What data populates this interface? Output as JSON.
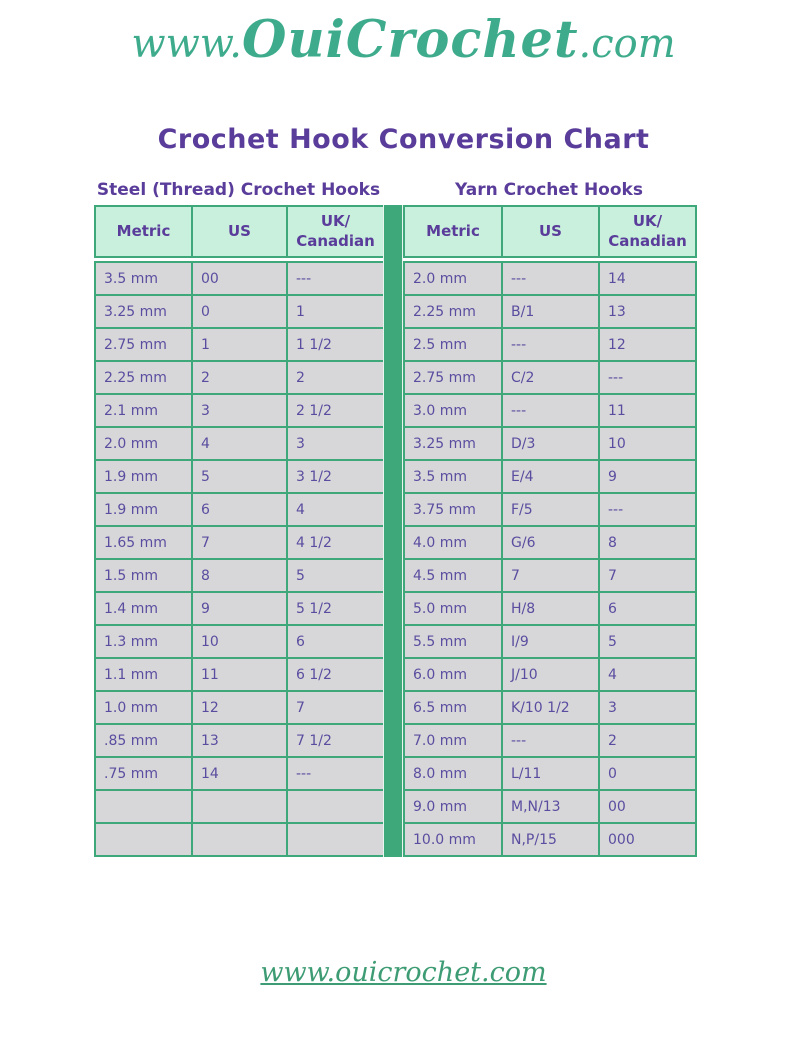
{
  "logo": {
    "prefix": "www.",
    "brand": "OuiCrochet",
    "suffix": ".com"
  },
  "title": "Crochet Hook Conversion Chart",
  "footer_link": "www.ouicrochet.com",
  "colors": {
    "accent_green": "#3ea87b",
    "header_mint": "#c9f0dc",
    "row_gray": "#d7d7d9",
    "title_purple": "#5a3c9a",
    "cell_text_purple": "#5a4da0",
    "logo_green": "#3eac8c",
    "footer_link_green": "#3e9c74"
  },
  "tables": {
    "steel": {
      "subtitle": "Steel (Thread) Crochet Hooks",
      "headers": [
        "Metric",
        "US",
        "UK/ Canadian"
      ],
      "rows": [
        [
          "3.5 mm",
          "00",
          "---"
        ],
        [
          "3.25 mm",
          "0",
          "1"
        ],
        [
          "2.75 mm",
          "1",
          "1 1/2"
        ],
        [
          "2.25 mm",
          "2",
          "2"
        ],
        [
          "2.1 mm",
          "3",
          "2 1/2"
        ],
        [
          "2.0 mm",
          "4",
          "3"
        ],
        [
          "1.9 mm",
          "5",
          "3 1/2"
        ],
        [
          "1.9 mm",
          "6",
          "4"
        ],
        [
          "1.65 mm",
          "7",
          "4 1/2"
        ],
        [
          "1.5 mm",
          "8",
          "5"
        ],
        [
          "1.4 mm",
          "9",
          "5 1/2"
        ],
        [
          "1.3 mm",
          "10",
          "6"
        ],
        [
          "1.1 mm",
          "11",
          "6 1/2"
        ],
        [
          "1.0 mm",
          "12",
          "7"
        ],
        [
          ".85 mm",
          "13",
          "7 1/2"
        ],
        [
          ".75 mm",
          "14",
          "---"
        ],
        [
          "",
          "",
          ""
        ],
        [
          "",
          "",
          ""
        ]
      ]
    },
    "yarn": {
      "subtitle": "Yarn Crochet Hooks",
      "headers": [
        "Metric",
        "US",
        "UK/ Canadian"
      ],
      "rows": [
        [
          "2.0 mm",
          "---",
          "14"
        ],
        [
          "2.25 mm",
          "B/1",
          "13"
        ],
        [
          "2.5 mm",
          "---",
          "12"
        ],
        [
          "2.75 mm",
          "C/2",
          "---"
        ],
        [
          "3.0 mm",
          "---",
          "11"
        ],
        [
          "3.25 mm",
          "D/3",
          "10"
        ],
        [
          "3.5 mm",
          "E/4",
          "9"
        ],
        [
          "3.75 mm",
          "F/5",
          "---"
        ],
        [
          "4.0 mm",
          "G/6",
          "8"
        ],
        [
          "4.5 mm",
          "7",
          "7"
        ],
        [
          "5.0 mm",
          "H/8",
          "6"
        ],
        [
          "5.5 mm",
          "I/9",
          "5"
        ],
        [
          "6.0 mm",
          "J/10",
          "4"
        ],
        [
          "6.5 mm",
          "K/10 1/2",
          "3"
        ],
        [
          "7.0 mm",
          "---",
          "2"
        ],
        [
          "8.0 mm",
          "L/11",
          "0"
        ],
        [
          "9.0 mm",
          "M,N/13",
          "00"
        ],
        [
          "10.0 mm",
          "N,P/15",
          "000"
        ]
      ]
    }
  }
}
